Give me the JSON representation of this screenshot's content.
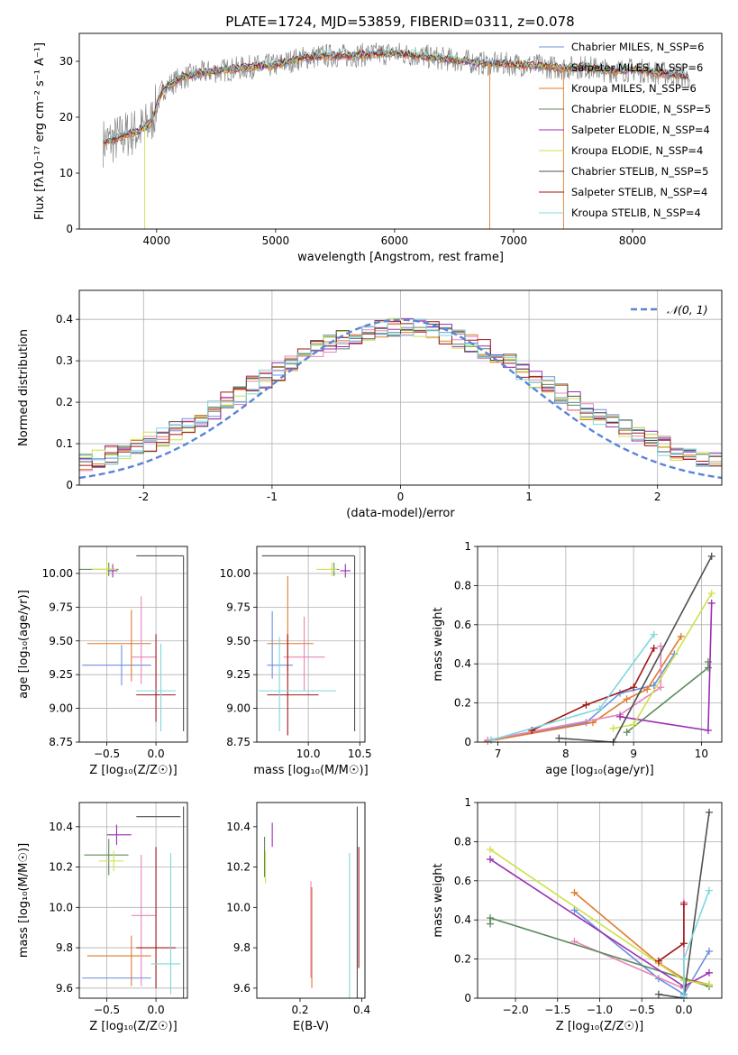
{
  "figure_title": "PLATE=1724, MJD=53859, FIBERID=0311, z=0.078",
  "colors": {
    "c1": "#6a8fe0",
    "c2": "#e07b2e",
    "c3": "#e884b8",
    "c4": "#5e8a5e",
    "c5": "#9b2fb0",
    "c6": "#cfe04a",
    "c7": "#505050",
    "c8": "#a01818",
    "c9": "#7fd7dc",
    "data": "#888888",
    "normal": "#5b84d6",
    "grid": "#b0b0b0"
  },
  "chart_data": [
    {
      "id": "spectrum",
      "type": "line",
      "title": "PLATE=1724, MJD=53859, FIBERID=0311, z=0.078",
      "xlabel": "wavelength [Angstrom, rest frame]",
      "ylabel": "Flux [fλ10⁻¹⁷ erg cm⁻² s⁻¹ A⁻¹]",
      "xlim": [
        3350,
        8750
      ],
      "ylim": [
        0,
        35
      ],
      "xticks": [
        4000,
        5000,
        6000,
        7000,
        8000
      ],
      "yticks": [
        0,
        10,
        20,
        30
      ],
      "legend_position": "top-right",
      "continuum": {
        "x": [
          3550,
          3650,
          3750,
          3850,
          3950,
          4050,
          4200,
          4400,
          4600,
          4800,
          5000,
          5200,
          5400,
          5600,
          5800,
          6000,
          6200,
          6400,
          6600,
          6800,
          7000,
          7200,
          7400,
          7600,
          7800,
          8000,
          8200,
          8400,
          8500
        ],
        "y": [
          15.5,
          16,
          17,
          17.5,
          19,
          25,
          27,
          28,
          28.5,
          29,
          29.3,
          30.5,
          31,
          31,
          31.2,
          31.5,
          31,
          30.5,
          30,
          29.5,
          29.5,
          29.2,
          28.8,
          29,
          28.3,
          28.5,
          28,
          27.5,
          27
        ]
      },
      "series": [
        {
          "name": "Chabrier MILES, N_SSP=6",
          "color": "c1"
        },
        {
          "name": "Salpeter MILES, N_SSP=6",
          "color": "c2"
        },
        {
          "name": "Kroupa MILES, N_SSP=6",
          "color": "c2"
        },
        {
          "name": "Chabrier ELODIE, N_SSP=5",
          "color": "c4"
        },
        {
          "name": "Salpeter ELODIE, N_SSP=4",
          "color": "c5"
        },
        {
          "name": "Kroupa ELODIE, N_SSP=4",
          "color": "c6"
        },
        {
          "name": "Chabrier STELIB, N_SSP=5",
          "color": "c7"
        },
        {
          "name": "Salpeter STELIB, N_SSP=4",
          "color": "c8"
        },
        {
          "name": "Kroupa STELIB, N_SSP=4",
          "color": "c9"
        }
      ],
      "drops": [
        {
          "x": 3900,
          "color": "c6"
        },
        {
          "x": 6800,
          "color": "c2"
        },
        {
          "x": 7420,
          "color": "c2"
        }
      ]
    },
    {
      "id": "residuals",
      "type": "line",
      "xlabel": "(data-model)/error",
      "ylabel": "Normed distribution",
      "xlim": [
        -2.5,
        2.5
      ],
      "ylim": [
        0,
        0.47
      ],
      "xticks": [
        -2,
        -1,
        0,
        1,
        2
      ],
      "yticks": [
        0.0,
        0.1,
        0.2,
        0.3,
        0.4
      ],
      "legend": [
        "𝒩(0, 1)"
      ],
      "legend_position": "top-right",
      "bin_width": 0.1,
      "base_amplitude": 0.36,
      "base_sigma": 1.15
    },
    {
      "id": "age_vs_z",
      "type": "scatter",
      "xlabel": "Z [log₁₀(Z/Z☉)]",
      "ylabel": "age  [log₁₀(age/yr)]",
      "xlim": [
        -0.78,
        0.32
      ],
      "ylim": [
        8.75,
        10.2
      ],
      "xticks": [
        -0.5,
        0.0
      ],
      "xtick_labels": [
        "−0.5",
        "0.0"
      ],
      "yticks": [
        8.75,
        9.0,
        9.25,
        9.5,
        9.75,
        10.0
      ],
      "ytick_labels": [
        "8.75",
        "9.00",
        "9.25",
        "9.50",
        "9.75",
        "10.00"
      ],
      "points": [
        {
          "color": "c1",
          "x": -0.35,
          "y": 9.32,
          "xerr": [
            0.4,
            0.3
          ],
          "yerr": [
            0.15,
            0.15
          ]
        },
        {
          "color": "c2",
          "x": -0.25,
          "y": 9.48,
          "xerr": [
            0.45,
            0.2
          ],
          "yerr": [
            0.28,
            0.25
          ]
        },
        {
          "color": "c3",
          "x": -0.15,
          "y": 9.38,
          "xerr": [
            0.1,
            0.15
          ],
          "yerr": [
            0.2,
            0.45
          ]
        },
        {
          "color": "c4",
          "x": -0.48,
          "y": 10.03,
          "xerr": [
            0.3,
            0.1
          ],
          "yerr": [
            0.05,
            0.05
          ]
        },
        {
          "color": "c5",
          "x": -0.44,
          "y": 10.02,
          "xerr": [
            0.05,
            0.05
          ],
          "yerr": [
            0.05,
            0.05
          ]
        },
        {
          "color": "c6",
          "x": -0.5,
          "y": 10.03,
          "xerr": [
            0.15,
            0.1
          ],
          "yerr": [
            0.05,
            0.05
          ]
        },
        {
          "color": "c7",
          "x": -0.2,
          "y": 10.13,
          "xerr": [
            0.0,
            0.48
          ],
          "yerr": [
            0.0,
            0.0
          ]
        },
        {
          "color": "c8",
          "x": 0.0,
          "y": 9.1,
          "xerr": [
            0.2,
            0.2
          ],
          "yerr": [
            0.2,
            0.45
          ]
        },
        {
          "color": "c9",
          "x": 0.05,
          "y": 9.13,
          "xerr": [
            0.25,
            0.15
          ],
          "yerr": [
            0.3,
            0.35
          ]
        },
        {
          "color": "c7",
          "x": 0.28,
          "y": 10.13,
          "xerr": [
            0.0,
            0.0
          ],
          "yerr": [
            1.3,
            0.0
          ]
        }
      ]
    },
    {
      "id": "age_vs_mass",
      "type": "scatter",
      "xlabel": "mass [log₁₀(M/M☉)]",
      "xlim": [
        9.5,
        10.55
      ],
      "ylim": [
        8.75,
        10.2
      ],
      "xticks": [
        10.0,
        10.5
      ],
      "xtick_labels": [
        "10.0",
        "10.5"
      ],
      "yticks": [
        8.75,
        9.0,
        9.25,
        9.5,
        9.75,
        10.0
      ],
      "ytick_labels": [
        "8.75",
        "9.00",
        "9.25",
        "9.50",
        "9.75",
        "10.00"
      ],
      "points": [
        {
          "color": "c1",
          "x": 9.65,
          "y": 9.32,
          "xerr": [
            0.05,
            0.2
          ],
          "yerr": [
            0.1,
            0.4
          ]
        },
        {
          "color": "c2",
          "x": 9.8,
          "y": 9.48,
          "xerr": [
            0.2,
            0.25
          ],
          "yerr": [
            0.2,
            0.5
          ]
        },
        {
          "color": "c3",
          "x": 9.96,
          "y": 9.38,
          "xerr": [
            0.2,
            0.2
          ],
          "yerr": [
            0.25,
            0.3
          ]
        },
        {
          "color": "c4",
          "x": 10.25,
          "y": 10.03,
          "xerr": [
            0.05,
            0.05
          ],
          "yerr": [
            0.05,
            0.05
          ]
        },
        {
          "color": "c5",
          "x": 10.36,
          "y": 10.02,
          "xerr": [
            0.05,
            0.05
          ],
          "yerr": [
            0.05,
            0.05
          ]
        },
        {
          "color": "c6",
          "x": 10.23,
          "y": 10.03,
          "xerr": [
            0.15,
            0.05
          ],
          "yerr": [
            0.05,
            0.05
          ]
        },
        {
          "color": "c7",
          "x": 9.55,
          "y": 10.13,
          "xerr": [
            0.0,
            0.9
          ],
          "yerr": [
            0.0,
            0.0
          ]
        },
        {
          "color": "c8",
          "x": 9.8,
          "y": 9.1,
          "xerr": [
            0.2,
            0.3
          ],
          "yerr": [
            0.3,
            0.45
          ]
        },
        {
          "color": "c9",
          "x": 9.72,
          "y": 9.13,
          "xerr": [
            0.2,
            0.55
          ],
          "yerr": [
            0.3,
            0.4
          ]
        },
        {
          "color": "c7",
          "x": 10.45,
          "y": 10.13,
          "xerr": [
            0.0,
            0.0
          ],
          "yerr": [
            1.3,
            0.0
          ]
        }
      ]
    },
    {
      "id": "massweight_vs_age",
      "type": "line",
      "xlabel": "age  [log₁₀(age/yr)]",
      "ylabel": "mass weight",
      "xlim": [
        6.7,
        10.3
      ],
      "ylim": [
        0,
        1.0
      ],
      "xticks": [
        7,
        8,
        9,
        10
      ],
      "yticks": [
        0.0,
        0.2,
        0.4,
        0.6,
        0.8,
        1.0
      ],
      "series": [
        {
          "color": "c1",
          "x": [
            6.9,
            8.3,
            8.8,
            9.3,
            9.6
          ],
          "y": [
            0.01,
            0.1,
            0.25,
            0.29,
            0.45
          ]
        },
        {
          "color": "c2",
          "x": [
            6.85,
            8.4,
            8.9,
            9.2,
            9.7
          ],
          "y": [
            0.005,
            0.1,
            0.22,
            0.27,
            0.54
          ]
        },
        {
          "color": "c3",
          "x": [
            6.85,
            8.8,
            9.4,
            9.4
          ],
          "y": [
            0.01,
            0.14,
            0.28,
            0.49
          ]
        },
        {
          "color": "c4",
          "x": [
            8.9,
            10.1,
            10.1
          ],
          "y": [
            0.05,
            0.38,
            0.41
          ]
        },
        {
          "color": "c5",
          "x": [
            8.8,
            10.1,
            10.15
          ],
          "y": [
            0.13,
            0.06,
            0.71
          ]
        },
        {
          "color": "c6",
          "x": [
            8.7,
            9.0,
            10.15
          ],
          "y": [
            0.07,
            0.09,
            0.76
          ]
        },
        {
          "color": "c7",
          "x": [
            7.9,
            8.7,
            10.15
          ],
          "y": [
            0.02,
            0.0,
            0.95
          ]
        },
        {
          "color": "c8",
          "x": [
            7.5,
            8.3,
            9.0,
            9.3
          ],
          "y": [
            0.06,
            0.19,
            0.28,
            0.48
          ]
        },
        {
          "color": "c9",
          "x": [
            6.9,
            8.5,
            9.3
          ],
          "y": [
            0.01,
            0.17,
            0.55
          ]
        }
      ]
    },
    {
      "id": "mass_vs_z",
      "type": "scatter",
      "xlabel": "Z [log₁₀(Z/Z☉)]",
      "ylabel": "mass [log₁₀(M/M☉)]",
      "xlim": [
        -0.78,
        0.32
      ],
      "ylim": [
        9.55,
        10.52
      ],
      "xticks": [
        -0.5,
        0.0
      ],
      "xtick_labels": [
        "−0.5",
        "0.0"
      ],
      "yticks": [
        9.6,
        9.8,
        10.0,
        10.2,
        10.4
      ],
      "ytick_labels": [
        "9.6",
        "9.8",
        "10.0",
        "10.2",
        "10.4"
      ],
      "points": [
        {
          "color": "c1",
          "x": -0.4,
          "y": 9.65,
          "xerr": [
            0.35,
            0.35
          ],
          "yerr": [
            0.0,
            0.0
          ]
        },
        {
          "color": "c2",
          "x": -0.25,
          "y": 9.76,
          "xerr": [
            0.45,
            0.2
          ],
          "yerr": [
            0.15,
            0.1
          ]
        },
        {
          "color": "c3",
          "x": -0.15,
          "y": 9.96,
          "xerr": [
            0.1,
            0.15
          ],
          "yerr": [
            0.35,
            0.3
          ]
        },
        {
          "color": "c4",
          "x": -0.48,
          "y": 10.26,
          "xerr": [
            0.25,
            0.2
          ],
          "yerr": [
            0.1,
            0.08
          ]
        },
        {
          "color": "c5",
          "x": -0.4,
          "y": 10.36,
          "xerr": [
            0.1,
            0.15
          ],
          "yerr": [
            0.05,
            0.05
          ]
        },
        {
          "color": "c6",
          "x": -0.43,
          "y": 10.23,
          "xerr": [
            0.15,
            0.1
          ],
          "yerr": [
            0.05,
            0.05
          ]
        },
        {
          "color": "c7",
          "x": -0.2,
          "y": 10.45,
          "xerr": [
            0.0,
            0.45
          ],
          "yerr": [
            0.0,
            0.0
          ]
        },
        {
          "color": "c8",
          "x": 0.0,
          "y": 9.8,
          "xerr": [
            0.2,
            0.2
          ],
          "yerr": [
            0.2,
            0.5
          ]
        },
        {
          "color": "c9",
          "x": 0.15,
          "y": 9.72,
          "xerr": [
            0.2,
            0.1
          ],
          "yerr": [
            0.15,
            0.55
          ]
        },
        {
          "color": "c7",
          "x": 0.28,
          "y": 10.45,
          "xerr": [
            0.0,
            0.0
          ],
          "yerr": [
            0.9,
            0.05
          ]
        }
      ]
    },
    {
      "id": "mass_vs_ebv",
      "type": "scatter",
      "xlabel": "E(B-V)",
      "xlim": [
        0.06,
        0.41
      ],
      "ylim": [
        9.55,
        10.52
      ],
      "xticks": [
        0.2,
        0.4
      ],
      "xtick_labels": [
        "0.2",
        "0.4"
      ],
      "yticks": [
        9.6,
        9.8,
        10.0,
        10.2,
        10.4
      ],
      "ytick_labels": [
        "9.6",
        "9.8",
        "10.0",
        "10.2",
        "10.4"
      ],
      "points": [
        {
          "color": "c4",
          "x": 0.085,
          "y": 10.25,
          "xerr": [
            0,
            0
          ],
          "yerr": [
            0.1,
            0.1
          ]
        },
        {
          "color": "c6",
          "x": 0.088,
          "y": 10.2,
          "xerr": [
            0,
            0
          ],
          "yerr": [
            0.08,
            0.08
          ]
        },
        {
          "color": "c5",
          "x": 0.11,
          "y": 10.36,
          "xerr": [
            0,
            0
          ],
          "yerr": [
            0.06,
            0.06
          ]
        },
        {
          "color": "c3",
          "x": 0.235,
          "y": 10.0,
          "xerr": [
            0,
            0
          ],
          "yerr": [
            0.35,
            0.13
          ]
        },
        {
          "color": "c2",
          "x": 0.238,
          "y": 9.85,
          "xerr": [
            0,
            0
          ],
          "yerr": [
            0.25,
            0.25
          ]
        },
        {
          "color": "c9",
          "x": 0.36,
          "y": 9.9,
          "xerr": [
            0,
            0
          ],
          "yerr": [
            0.35,
            0.37
          ]
        },
        {
          "color": "c8",
          "x": 0.39,
          "y": 10.0,
          "xerr": [
            0,
            0
          ],
          "yerr": [
            0.3,
            0.3
          ]
        },
        {
          "color": "c7",
          "x": 0.385,
          "y": 10.0,
          "xerr": [
            0,
            0
          ],
          "yerr": [
            0.45,
            0.5
          ]
        }
      ]
    },
    {
      "id": "massweight_vs_z",
      "type": "line",
      "xlabel": "Z [log₁₀(Z/Z☉)]",
      "ylabel": "mass weight",
      "xlim": [
        -2.45,
        0.45
      ],
      "ylim": [
        0,
        1.0
      ],
      "xticks": [
        -2.0,
        -1.5,
        -1.0,
        -0.5,
        0.0
      ],
      "xtick_labels": [
        "−2.0",
        "−1.5",
        "−1.0",
        "−0.5",
        "0.0"
      ],
      "yticks": [
        0.0,
        0.2,
        0.4,
        0.6,
        0.8,
        1.0
      ],
      "series": [
        {
          "color": "c1",
          "x": [
            -1.3,
            -0.3,
            0.0,
            0.3
          ],
          "y": [
            0.45,
            0.1,
            0.02,
            0.24
          ]
        },
        {
          "color": "c2",
          "x": [
            -1.3,
            -0.3,
            0.0,
            0.3
          ],
          "y": [
            0.54,
            0.18,
            0.1,
            0.07
          ]
        },
        {
          "color": "c3",
          "x": [
            -1.3,
            0.0,
            0.0
          ],
          "y": [
            0.29,
            0.05,
            0.49
          ]
        },
        {
          "color": "c4",
          "x": [
            -2.3,
            -2.3,
            0.3
          ],
          "y": [
            0.38,
            0.41,
            0.06
          ]
        },
        {
          "color": "c5",
          "x": [
            -2.3,
            0.0,
            0.3
          ],
          "y": [
            0.71,
            0.06,
            0.13
          ]
        },
        {
          "color": "c6",
          "x": [
            -2.3,
            0.0,
            0.3
          ],
          "y": [
            0.76,
            0.09,
            0.07
          ]
        },
        {
          "color": "c7",
          "x": [
            -0.3,
            0.0,
            0.3
          ],
          "y": [
            0.02,
            0.0,
            0.95
          ]
        },
        {
          "color": "c8",
          "x": [
            -0.3,
            0.0,
            0.0
          ],
          "y": [
            0.19,
            0.28,
            0.48
          ]
        },
        {
          "color": "c9",
          "x": [
            0.0,
            0.0,
            0.3
          ],
          "y": [
            0.01,
            0.2,
            0.55
          ]
        }
      ]
    }
  ]
}
